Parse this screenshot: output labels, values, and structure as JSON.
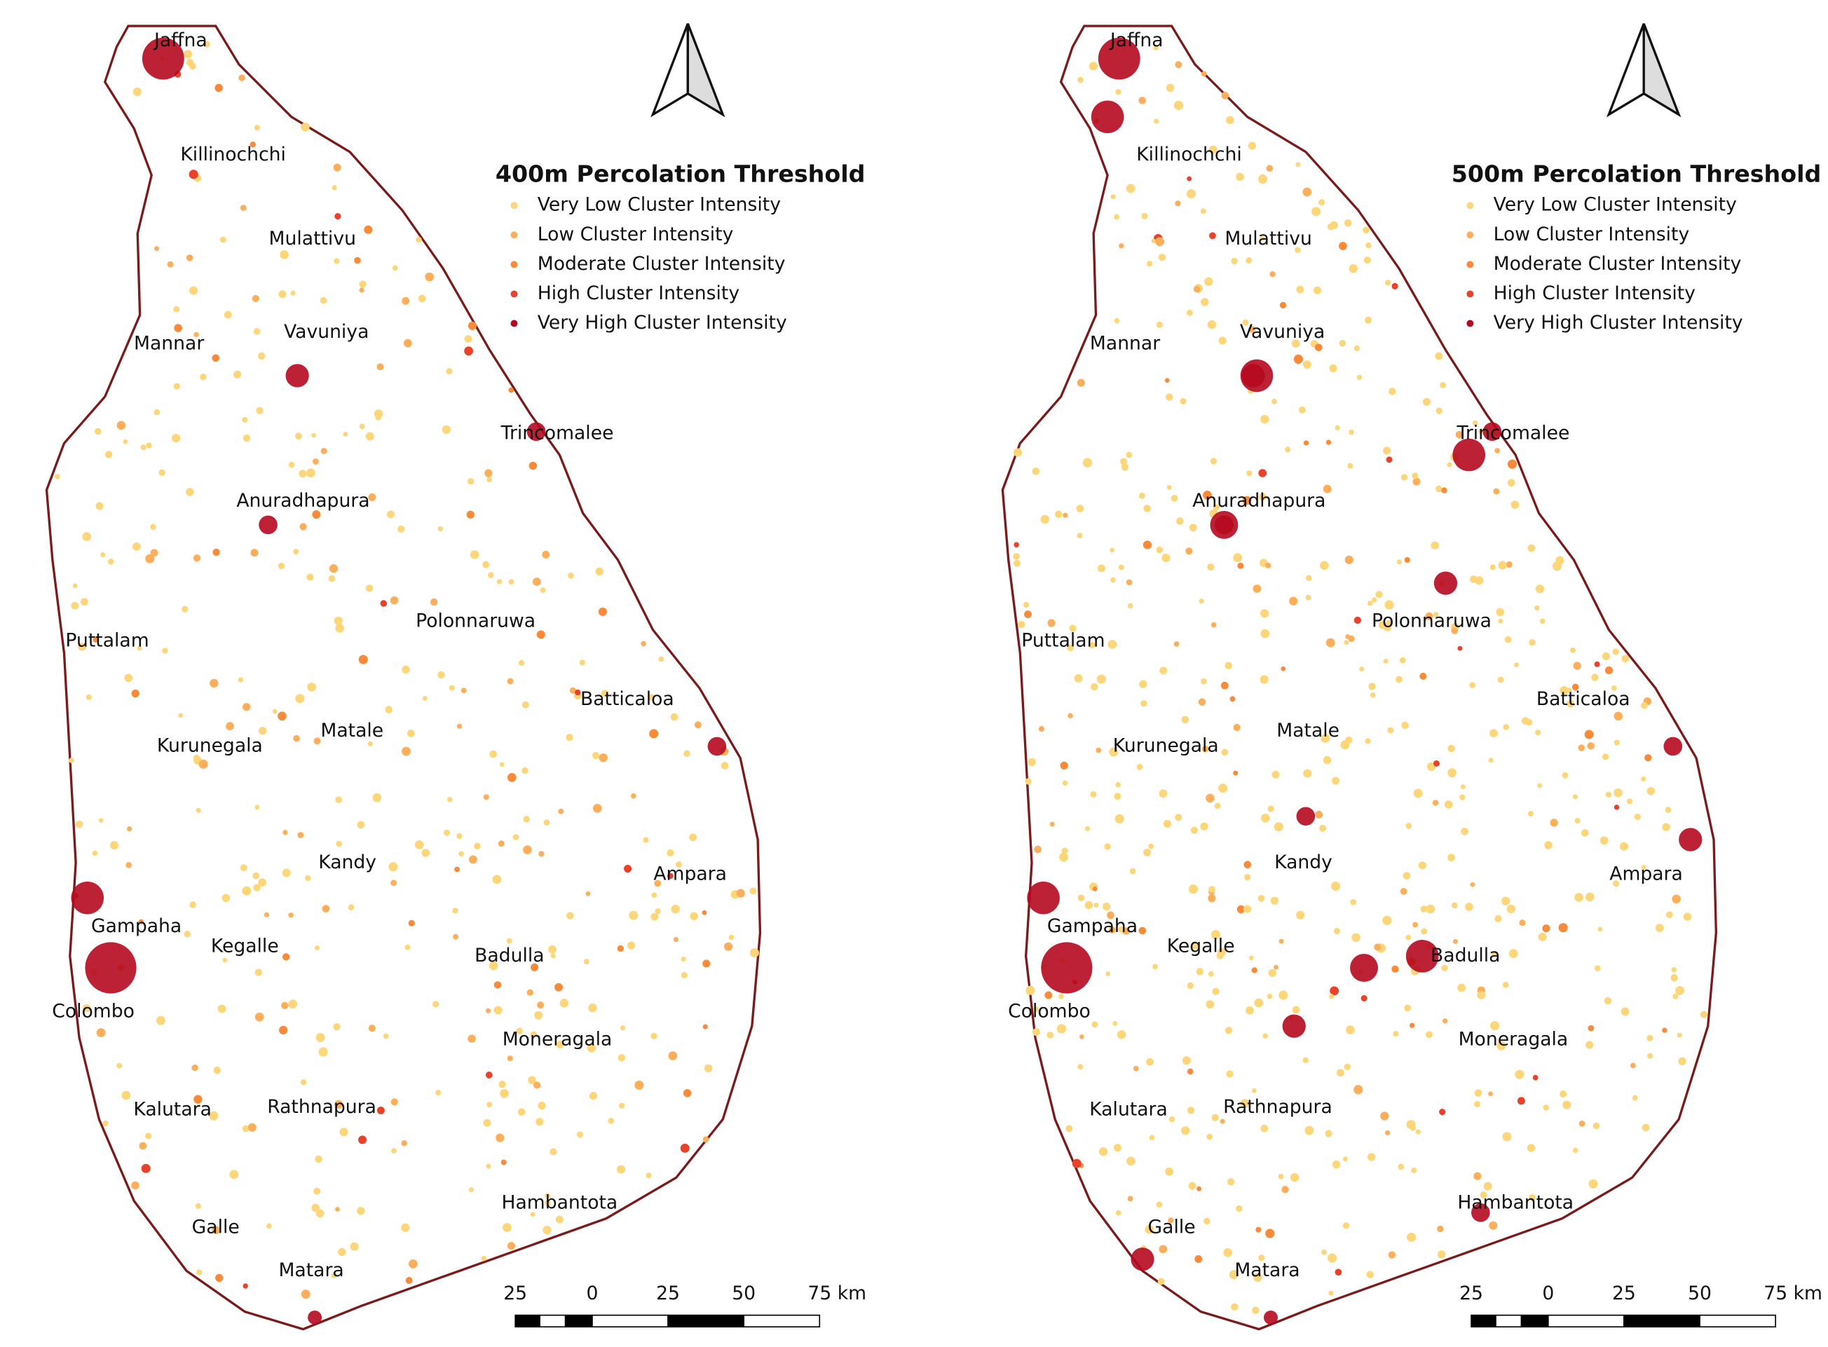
{
  "maps": [
    {
      "title": "400m Percolation Threshold",
      "legend": [
        {
          "label": "Very Low Cluster Intensity",
          "color": "#fdd67a"
        },
        {
          "label": "Low Cluster Intensity",
          "color": "#fcae5a"
        },
        {
          "label": "Moderate Cluster Intensity",
          "color": "#f88a3a"
        },
        {
          "label": "High Cluster Intensity",
          "color": "#e8432a"
        },
        {
          "label": "Very High Cluster Intensity",
          "color": "#b5091f"
        }
      ],
      "districts": [
        "Jaffna",
        "Killinochchi",
        "Mulattivu",
        "Mannar",
        "Vavuniya",
        "Trincomalee",
        "Anuradhapura",
        "Polonnaruwa",
        "Puttalam",
        "Batticaloa",
        "Kurunegala",
        "Matale",
        "Kandy",
        "Ampara",
        "Gampaha",
        "Kegalle",
        "Badulla",
        "Colombo",
        "Moneragala",
        "Kalutara",
        "Rathnapura",
        "Hambantota",
        "Galle",
        "Matara"
      ],
      "scale": [
        "25",
        "0",
        "25",
        "50",
        "75 km"
      ]
    },
    {
      "title": "500m Percolation Threshold",
      "legend": [
        {
          "label": "Very Low Cluster Intensity",
          "color": "#fdd67a"
        },
        {
          "label": "Low Cluster Intensity",
          "color": "#fcae5a"
        },
        {
          "label": "Moderate Cluster Intensity",
          "color": "#f88a3a"
        },
        {
          "label": "High Cluster Intensity",
          "color": "#e8432a"
        },
        {
          "label": "Very High Cluster Intensity",
          "color": "#b5091f"
        }
      ],
      "districts": [
        "Jaffna",
        "Killinochchi",
        "Mulattivu",
        "Mannar",
        "Vavuniya",
        "Trincomalee",
        "Anuradhapura",
        "Polonnaruwa",
        "Puttalam",
        "Batticaloa",
        "Kurunegala",
        "Matale",
        "Kandy",
        "Ampara",
        "Gampaha",
        "Kegalle",
        "Badulla",
        "Colombo",
        "Moneragala",
        "Kalutara",
        "Rathnapura",
        "Hambantota",
        "Galle",
        "Matara"
      ],
      "scale": [
        "25",
        "0",
        "25",
        "50",
        "75 km"
      ]
    }
  ]
}
